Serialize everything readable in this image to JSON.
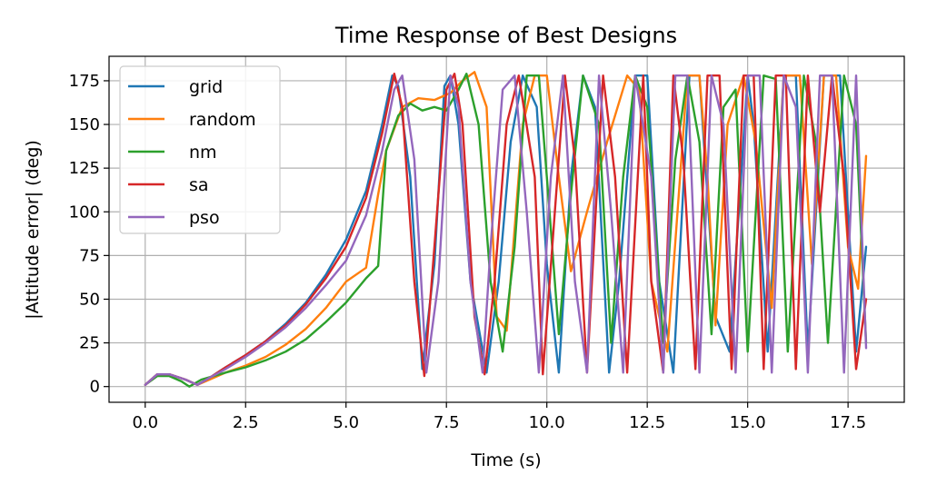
{
  "chart_data": {
    "type": "line",
    "title": "Time Response of Best Designs",
    "xlabel": "Time (s)",
    "ylabel": "|Attitude error| (deg)",
    "xlim": [
      -0.9,
      18.9
    ],
    "ylim": [
      -9,
      189
    ],
    "xticks": [
      0.0,
      2.5,
      5.0,
      7.5,
      10.0,
      12.5,
      15.0,
      17.5
    ],
    "xtick_labels": [
      "0.0",
      "2.5",
      "5.0",
      "7.5",
      "10.0",
      "12.5",
      "15.0",
      "17.5"
    ],
    "yticks": [
      0,
      25,
      50,
      75,
      100,
      125,
      150,
      175
    ],
    "ytick_labels": [
      "0",
      "25",
      "50",
      "75",
      "100",
      "125",
      "150",
      "175"
    ],
    "grid": true,
    "legend_position": "top-left",
    "series": [
      {
        "name": "grid",
        "color": "#1f77b4",
        "x": [
          0.0,
          0.3,
          0.6,
          1.0,
          1.3,
          1.6,
          2.0,
          2.5,
          3.0,
          3.5,
          4.0,
          4.5,
          5.0,
          5.5,
          5.9,
          6.15,
          6.3,
          6.6,
          6.9,
          7.2,
          7.45,
          7.6,
          7.8,
          8.1,
          8.5,
          8.8,
          9.1,
          9.4,
          9.75,
          10.0,
          10.3,
          10.6,
          10.9,
          11.2,
          11.55,
          11.8,
          12.2,
          12.5,
          12.8,
          13.15,
          13.55,
          13.8,
          14.2,
          14.55,
          15.0,
          15.15,
          15.5,
          15.9,
          16.2,
          16.5,
          16.9,
          17.3,
          17.7,
          17.95
        ],
        "y": [
          1,
          7,
          7,
          4,
          1,
          5,
          11,
          18,
          26,
          36,
          48,
          64,
          84,
          112,
          150,
          178,
          172,
          120,
          10,
          70,
          172,
          178,
          150,
          60,
          8,
          60,
          140,
          178,
          160,
          70,
          8,
          120,
          178,
          160,
          8,
          60,
          178,
          178,
          60,
          8,
          178,
          178,
          40,
          20,
          178,
          150,
          20,
          178,
          178,
          20,
          178,
          178,
          20,
          80
        ]
      },
      {
        "name": "random",
        "color": "#ff7f0e",
        "x": [
          0.0,
          0.3,
          0.6,
          1.0,
          1.3,
          1.6,
          2.0,
          2.5,
          3.0,
          3.5,
          4.0,
          4.5,
          5.0,
          5.5,
          5.8,
          6.0,
          6.4,
          6.8,
          7.2,
          7.6,
          7.9,
          8.2,
          8.5,
          8.75,
          9.0,
          9.4,
          9.7,
          10.0,
          10.3,
          10.6,
          11.0,
          11.5,
          12.0,
          12.3,
          12.6,
          13.0,
          13.5,
          13.8,
          14.0,
          14.2,
          14.5,
          14.9,
          15.2,
          15.6,
          15.9,
          16.3,
          16.6,
          16.9,
          17.2,
          17.5,
          17.75,
          17.95
        ],
        "y": [
          1,
          7,
          7,
          4,
          1,
          4,
          8,
          12,
          17,
          24,
          33,
          45,
          60,
          68,
          110,
          135,
          160,
          165,
          164,
          168,
          175,
          180,
          160,
          40,
          32,
          150,
          178,
          178,
          120,
          66,
          100,
          140,
          178,
          170,
          60,
          20,
          178,
          178,
          120,
          35,
          150,
          178,
          140,
          45,
          178,
          178,
          70,
          178,
          178,
          80,
          56,
          132
        ]
      },
      {
        "name": "nm",
        "color": "#2ca02c",
        "x": [
          0.0,
          0.3,
          0.6,
          0.9,
          1.1,
          1.4,
          2.0,
          2.5,
          3.0,
          3.5,
          4.0,
          4.5,
          5.0,
          5.5,
          5.8,
          6.0,
          6.3,
          6.6,
          6.9,
          7.2,
          7.5,
          7.8,
          8.0,
          8.3,
          8.6,
          8.9,
          9.2,
          9.5,
          9.8,
          10.0,
          10.3,
          10.6,
          10.9,
          11.3,
          11.6,
          11.9,
          12.2,
          12.5,
          12.9,
          13.2,
          13.5,
          13.8,
          14.1,
          14.4,
          14.7,
          15.0,
          15.4,
          15.7,
          16.0,
          16.4,
          16.7,
          17.0,
          17.4,
          17.7,
          17.95
        ],
        "y": [
          1,
          6,
          6,
          3,
          0,
          4,
          8,
          11,
          15,
          20,
          27,
          37,
          48,
          62,
          69,
          135,
          155,
          162,
          158,
          160,
          158,
          170,
          179,
          150,
          60,
          20,
          80,
          178,
          178,
          120,
          30,
          110,
          178,
          150,
          25,
          120,
          178,
          160,
          25,
          130,
          178,
          140,
          30,
          160,
          170,
          20,
          178,
          176,
          20,
          178,
          140,
          25,
          178,
          150,
          25
        ]
      },
      {
        "name": "sa",
        "color": "#d62728",
        "x": [
          0.0,
          0.3,
          0.6,
          1.0,
          1.3,
          1.6,
          2.0,
          2.5,
          3.0,
          3.5,
          4.0,
          4.5,
          5.0,
          5.5,
          5.9,
          6.2,
          6.4,
          6.7,
          6.95,
          7.2,
          7.5,
          7.7,
          7.9,
          8.2,
          8.45,
          8.7,
          9.0,
          9.3,
          9.7,
          9.9,
          10.2,
          10.45,
          10.7,
          11.0,
          11.4,
          11.7,
          12.0,
          12.4,
          12.6,
          12.9,
          13.15,
          13.4,
          13.7,
          14.0,
          14.3,
          14.6,
          14.9,
          15.15,
          15.4,
          15.7,
          15.95,
          16.2,
          16.5,
          16.8,
          17.1,
          17.4,
          17.7,
          17.95
        ],
        "y": [
          1,
          7,
          7,
          4,
          1,
          5,
          11,
          18,
          26,
          35,
          47,
          62,
          80,
          108,
          145,
          179,
          160,
          60,
          6,
          80,
          170,
          179,
          150,
          40,
          7,
          60,
          150,
          178,
          120,
          7,
          100,
          178,
          130,
          8,
          178,
          120,
          8,
          178,
          60,
          8,
          178,
          130,
          10,
          178,
          178,
          10,
          178,
          178,
          10,
          178,
          178,
          10,
          178,
          100,
          178,
          120,
          10,
          50
        ]
      },
      {
        "name": "pso",
        "color": "#9467bd",
        "x": [
          0.0,
          0.3,
          0.6,
          1.0,
          1.3,
          1.6,
          2.0,
          2.5,
          3.0,
          3.5,
          4.0,
          4.5,
          5.0,
          5.5,
          5.9,
          6.2,
          6.4,
          6.7,
          7.0,
          7.3,
          7.6,
          7.8,
          8.1,
          8.4,
          8.6,
          8.9,
          9.2,
          9.5,
          9.8,
          10.1,
          10.4,
          10.7,
          11.0,
          11.3,
          11.6,
          11.9,
          12.2,
          12.6,
          12.9,
          13.2,
          13.5,
          13.8,
          14.1,
          14.4,
          14.7,
          15.0,
          15.3,
          15.6,
          15.9,
          16.2,
          16.5,
          16.8,
          17.1,
          17.4,
          17.7,
          17.95
        ],
        "y": [
          1,
          7,
          7,
          4,
          1,
          5,
          10,
          17,
          25,
          34,
          45,
          58,
          72,
          98,
          135,
          170,
          178,
          130,
          8,
          60,
          178,
          160,
          60,
          8,
          80,
          170,
          178,
          100,
          8,
          120,
          178,
          60,
          8,
          178,
          100,
          8,
          178,
          120,
          8,
          178,
          178,
          8,
          178,
          150,
          8,
          178,
          178,
          8,
          178,
          160,
          8,
          178,
          178,
          8,
          178,
          22
        ]
      }
    ]
  }
}
